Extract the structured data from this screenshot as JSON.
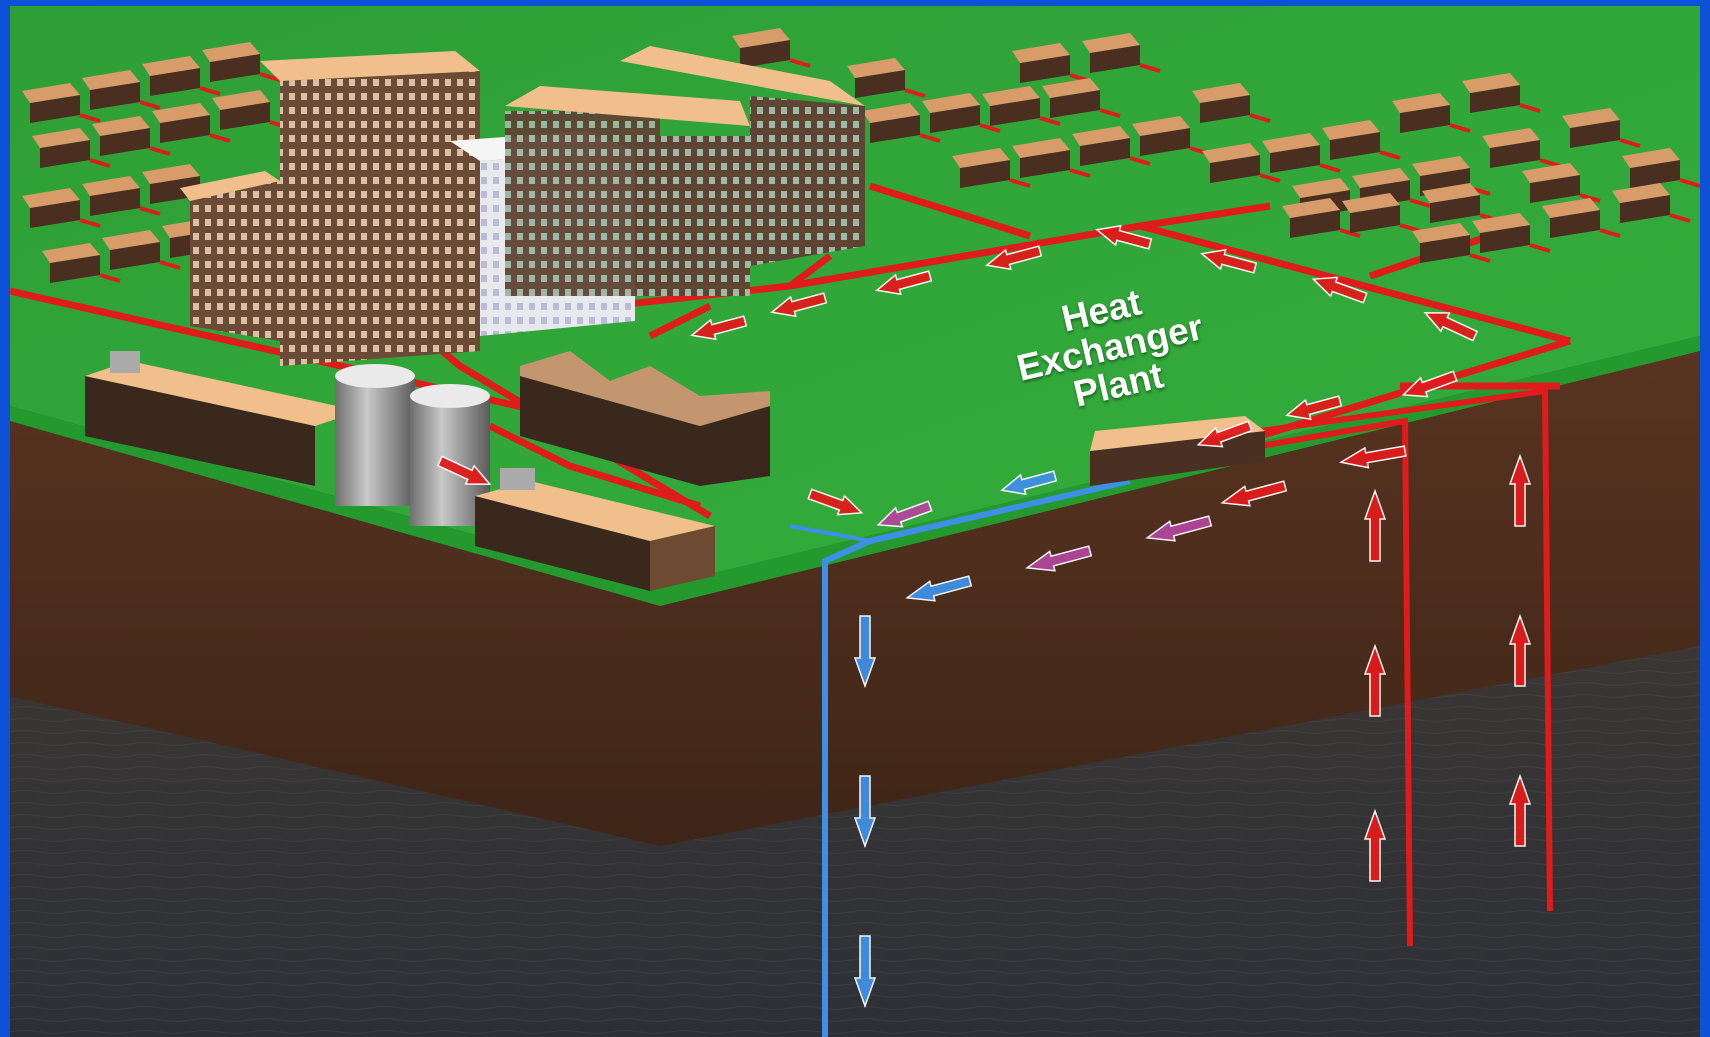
{
  "label": {
    "line1": "Heat",
    "line2": "Exchanger",
    "line3": "Plant"
  },
  "colors": {
    "frame": "#0d52d6",
    "grass": "#2fa83a",
    "soil": "#4a2b1c",
    "rock": "#3f3f3f",
    "hot_pipe": "#e01b1b",
    "cold_pipe": "#3f8fe6",
    "mixed_pipe": "#b0479a",
    "building_roof": "#f0bf8c",
    "building_wall": "#6e4a33"
  },
  "icons": {
    "hot_flow": "red-arrow-icon",
    "cold_flow": "blue-arrow-icon",
    "mixed_flow": "purple-arrow-icon"
  }
}
